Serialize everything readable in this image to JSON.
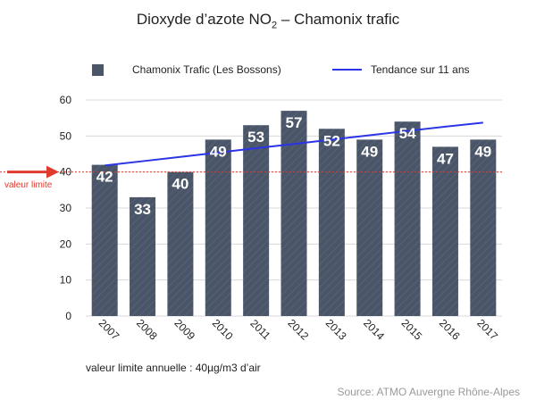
{
  "title": {
    "main": "Dioxyde d’azote NO",
    "subscript": "2",
    "suffix": " – Chamonix trafic"
  },
  "legend": {
    "bar_label": "Chamonix Trafic (Les Bossons)",
    "line_label": "Tendance sur 11 ans"
  },
  "threshold_label": "valeur limite",
  "footnote": "valeur limite annuelle :  40µg/m3 d’air",
  "source": "Source: ATMO Auvergne Rhône-Alpes",
  "colors": {
    "bar": "#4a5567",
    "trend": "#2b34e6",
    "threshold": "#e03a2e",
    "grid": "#d8d8d8",
    "bar_label": "#ffffff",
    "source_text": "#999999"
  },
  "chart_data": {
    "type": "bar",
    "title": "Dioxyde d’azote NO2 – Chamonix trafic",
    "categories": [
      "2007",
      "2008",
      "2009",
      "2010",
      "2011",
      "2012",
      "2013",
      "2014",
      "2015",
      "2016",
      "2017"
    ],
    "series": [
      {
        "name": "Chamonix Trafic (Les Bossons)",
        "type": "bar",
        "values": [
          42,
          33,
          40,
          49,
          53,
          57,
          52,
          49,
          54,
          47,
          49
        ]
      },
      {
        "name": "Tendance sur 11 ans",
        "type": "line",
        "values": [
          41.8,
          43.0,
          44.2,
          45.4,
          46.6,
          47.8,
          49.0,
          50.2,
          51.4,
          52.6,
          53.7
        ]
      }
    ],
    "reference_line": {
      "label": "valeur limite",
      "value": 40
    },
    "ylim": [
      0,
      60
    ],
    "yticks": [
      0,
      10,
      20,
      30,
      40,
      50,
      60
    ],
    "data_labels": true,
    "grid": "horizontal",
    "legend_position": "top",
    "xlabel": "",
    "ylabel": ""
  }
}
